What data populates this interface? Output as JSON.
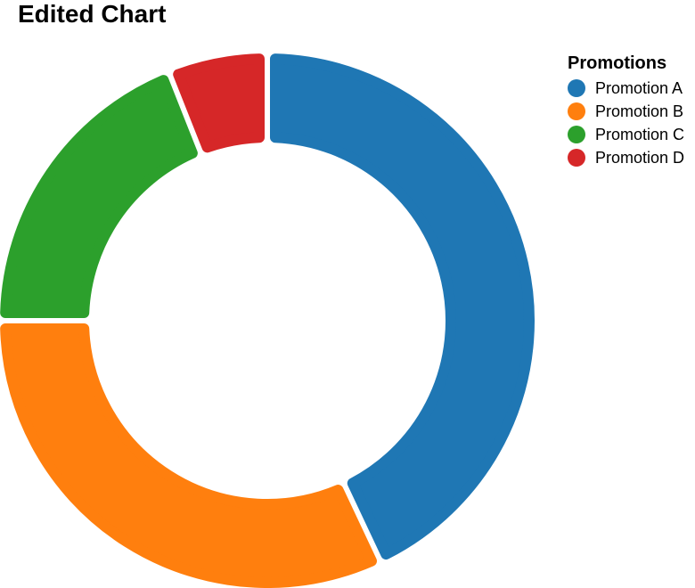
{
  "chart_data": {
    "type": "pie",
    "variant": "donut",
    "title": "Edited Chart",
    "legend": {
      "title": "Promotions",
      "placement": "top-right"
    },
    "categories": [
      "Promotion A",
      "Promotion B",
      "Promotion C",
      "Promotion D"
    ],
    "values": [
      43,
      32,
      19,
      6
    ],
    "colors": [
      "#1f77b4",
      "#ff7f0e",
      "#2ca02c",
      "#d62728"
    ]
  }
}
